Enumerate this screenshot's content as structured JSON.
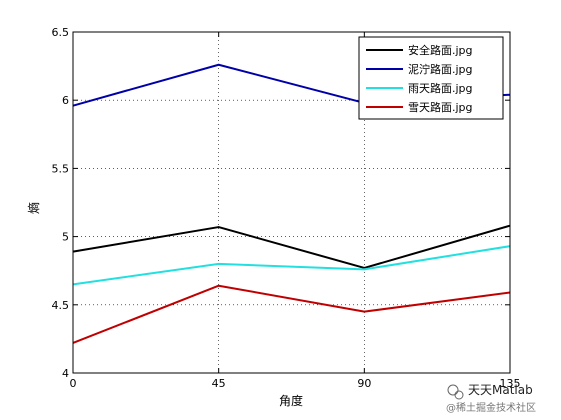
{
  "chart_data": {
    "type": "line",
    "title": "",
    "xlabel": "角度",
    "ylabel": "熵",
    "x": [
      0,
      45,
      90,
      135
    ],
    "xticks": [
      "0",
      "45",
      "90",
      "135"
    ],
    "yticks": [
      "4",
      "4.5",
      "5",
      "5.5",
      "6",
      "6.5"
    ],
    "xlim": [
      0,
      135
    ],
    "ylim": [
      4,
      6.5
    ],
    "grid": true,
    "legend_position": "top-right",
    "series": [
      {
        "name": "安全路面.jpg",
        "color": "#000000",
        "values": [
          4.89,
          5.07,
          4.77,
          5.08
        ]
      },
      {
        "name": "泥泞路面.jpg",
        "color": "#0000a8",
        "values": [
          5.96,
          6.26,
          5.98,
          6.04
        ]
      },
      {
        "name": "雨天路面.jpg",
        "color": "#22e0e0",
        "values": [
          4.65,
          4.8,
          4.76,
          4.93
        ]
      },
      {
        "name": "雪天路面.jpg",
        "color": "#c00000",
        "values": [
          4.22,
          4.64,
          4.45,
          4.59
        ]
      }
    ]
  },
  "watermark": {
    "title": "天天Matlab",
    "subtitle": "@稀土掘金技术社区",
    "icon": "wechat-icon"
  }
}
